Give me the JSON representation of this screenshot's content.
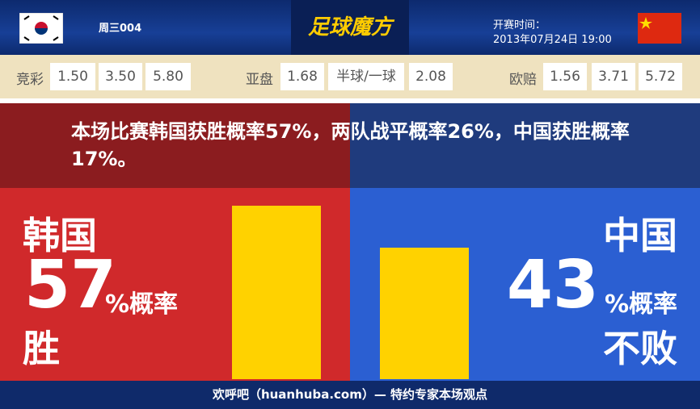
{
  "header": {
    "match_id": "周三004",
    "logo": "足球魔方",
    "kickoff_label": "开赛时间：",
    "kickoff_time": "2013年07月24日 19:00"
  },
  "odds": [
    {
      "label": "竞彩",
      "values": [
        "1.50",
        "3.50",
        "5.80"
      ]
    },
    {
      "label": "亚盘",
      "values": [
        "1.68",
        "半球/一球",
        "2.08"
      ]
    },
    {
      "label": "欧赔",
      "values": [
        "1.56",
        "3.71",
        "5.72"
      ]
    }
  ],
  "summary": "本场比赛韩国获胜概率57%，两队战平概率26%，中国获胜概率17%。",
  "teams": [
    {
      "name": "韩国",
      "value": 57,
      "unit": "%概率",
      "outcome": "胜"
    },
    {
      "name": "中国",
      "value": 43,
      "unit": "%概率",
      "outcome": "不败"
    }
  ],
  "footer": "欢呼吧（huanhuba.com）— 特约专家本场观点"
}
